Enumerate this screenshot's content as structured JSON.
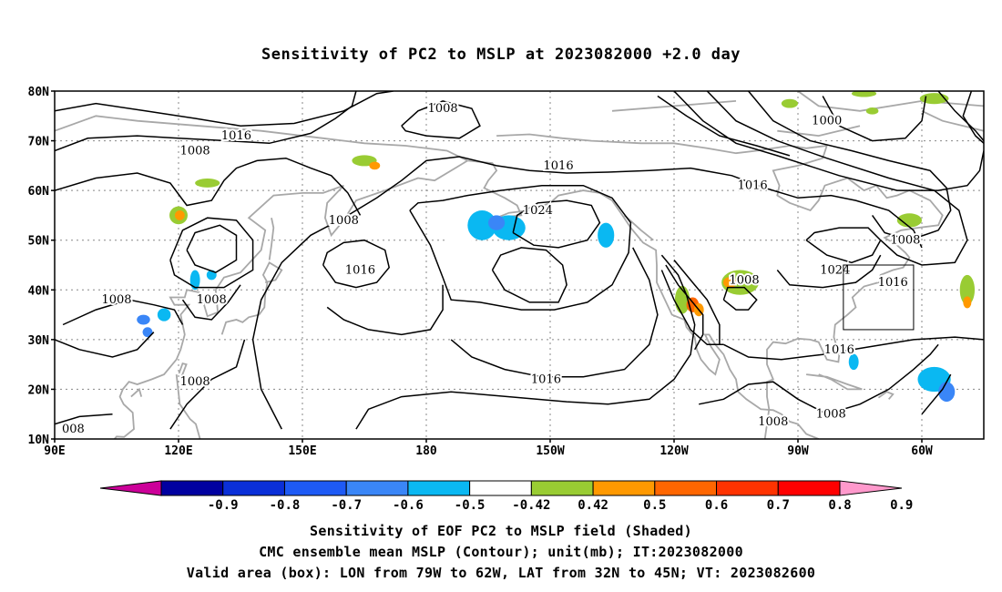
{
  "title": "Sensitivity of PC2 to MSLP at 2023082000 +2.0 day",
  "latitude_labels": [
    "80N",
    "70N",
    "60N",
    "50N",
    "40N",
    "30N",
    "20N",
    "10N"
  ],
  "longitude_labels": [
    "90E",
    "120E",
    "150E",
    "180",
    "150W",
    "120W",
    "90W",
    "60W"
  ],
  "isobar_labels": [
    {
      "text": "1008",
      "lon": 184,
      "lat": 76.5
    },
    {
      "text": "1016",
      "lon": 134,
      "lat": 71
    },
    {
      "text": "1008",
      "lon": 124,
      "lat": 68
    },
    {
      "text": "1016",
      "lon": 212,
      "lat": 65
    },
    {
      "text": "1016",
      "lon": 259,
      "lat": 61
    },
    {
      "text": "1024",
      "lon": 207,
      "lat": 56
    },
    {
      "text": "1008",
      "lon": 160,
      "lat": 54
    },
    {
      "text": "1016",
      "lon": 164,
      "lat": 44
    },
    {
      "text": "1008",
      "lon": 257,
      "lat": 42
    },
    {
      "text": "1000",
      "lon": 277,
      "lat": 74
    },
    {
      "text": "1008",
      "lon": 296,
      "lat": 50
    },
    {
      "text": "1024",
      "lon": 279,
      "lat": 44
    },
    {
      "text": "1016",
      "lon": 293,
      "lat": 41.5
    },
    {
      "text": "1008",
      "lon": 105,
      "lat": 38
    },
    {
      "text": "1008",
      "lon": 128,
      "lat": 38
    },
    {
      "text": "1016",
      "lon": 280,
      "lat": 28
    },
    {
      "text": "1016",
      "lon": 209,
      "lat": 22
    },
    {
      "text": "1008",
      "lon": 124,
      "lat": 21.5
    },
    {
      "text": "1008",
      "lon": 264,
      "lat": 13.5
    },
    {
      "text": "1008",
      "lon": 278,
      "lat": 15
    },
    {
      "text": "008",
      "lon": 94.5,
      "lat": 12
    }
  ],
  "valid_area": {
    "lon_from": "79W",
    "lon_to": "62W",
    "lat_from": "32N",
    "lat_to": "45N"
  },
  "colorbar": {
    "labels": [
      "-0.9",
      "-0.8",
      "-0.7",
      "-0.6",
      "-0.5",
      "-0.42",
      "0.42",
      "0.5",
      "0.6",
      "0.7",
      "0.8",
      "0.9"
    ],
    "colors": [
      "#0000a0",
      "#0a2fd8",
      "#1e5af5",
      "#3a86f7",
      "#0ab8f2",
      "#ffffff",
      "#99cc33",
      "#ff9900",
      "#ff6600",
      "#ff3300",
      "#ff0000"
    ],
    "low_extend_color": "#cc0099",
    "high_extend_color": "#ff99cc"
  },
  "footer": {
    "line1": "Sensitivity of EOF PC2 to MSLP field (Shaded)",
    "line2": "CMC ensemble mean MSLP (Contour); unit(mb); IT:2023082000",
    "line3": "Valid area (box): LON from 79W to 62W, LAT from 32N to 45N; VT: 2023082600"
  },
  "colors": {
    "coast": "#a8a8a8",
    "contour": "#000000",
    "grid": "#888888"
  }
}
